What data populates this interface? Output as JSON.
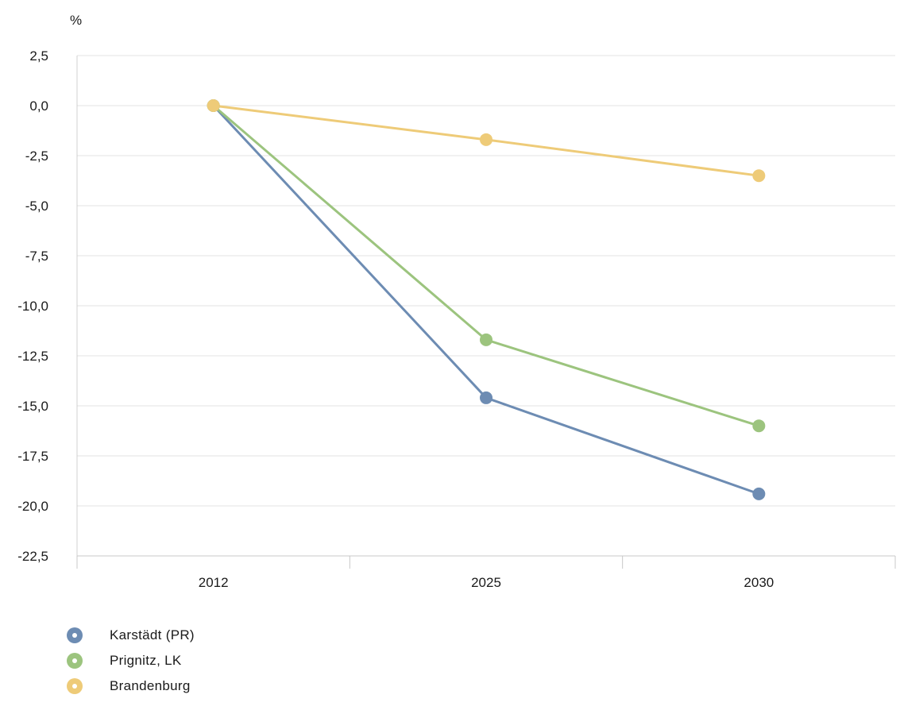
{
  "chart_data": {
    "type": "line",
    "title": "",
    "xlabel": "",
    "ylabel": "%",
    "categories": [
      "2012",
      "2025",
      "2030"
    ],
    "ylim": [
      -22.5,
      2.5
    ],
    "yticks": [
      2.5,
      0.0,
      -2.5,
      -5.0,
      -7.5,
      -10.0,
      -12.5,
      -15.0,
      -17.5,
      -20.0,
      -22.5
    ],
    "ytick_labels": [
      "2,5",
      "0,0",
      "-2,5",
      "-5,0",
      "-7,5",
      "-10,0",
      "-12,5",
      "-15,0",
      "-17,5",
      "-20,0",
      "-22,5"
    ],
    "grid": true,
    "legend_position": "bottom-left",
    "series": [
      {
        "name": "Karstädt (PR)",
        "values": [
          0.0,
          -14.6,
          -19.4
        ],
        "color": "#6d8cb3"
      },
      {
        "name": "Prignitz, LK",
        "values": [
          0.0,
          -11.7,
          -16.0
        ],
        "color": "#9cc47e"
      },
      {
        "name": "Brandenburg",
        "values": [
          0.0,
          -1.7,
          -3.5
        ],
        "color": "#eecb78"
      }
    ]
  }
}
